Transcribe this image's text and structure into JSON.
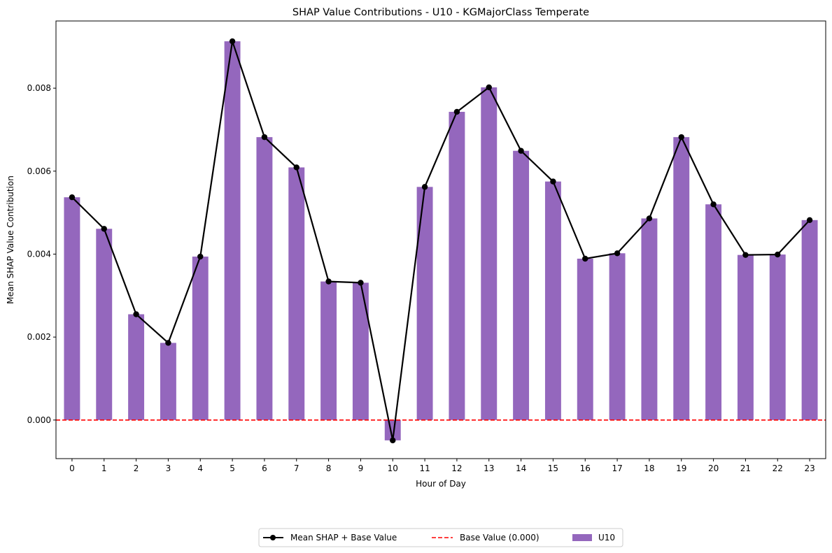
{
  "chart_data": {
    "type": "bar",
    "title": "SHAP Value Contributions - U10 - KGMajorClass Temperate",
    "xlabel": "Hour of Day",
    "ylabel": "Mean SHAP Value Contribution",
    "categories": [
      "0",
      "1",
      "2",
      "3",
      "4",
      "5",
      "6",
      "7",
      "8",
      "9",
      "10",
      "11",
      "12",
      "13",
      "14",
      "15",
      "16",
      "17",
      "18",
      "19",
      "20",
      "21",
      "22",
      "23"
    ],
    "ylim": [
      -0.00093,
      0.00962
    ],
    "yticks": [
      0.0,
      0.002,
      0.004,
      0.006,
      0.008
    ],
    "ytick_labels": [
      "0.000",
      "0.002",
      "0.004",
      "0.006",
      "0.008"
    ],
    "series": [
      {
        "name": "U10",
        "kind": "bar",
        "color": "#9467bd",
        "values": [
          0.00537,
          0.00461,
          0.00255,
          0.00186,
          0.00394,
          0.00913,
          0.00682,
          0.00609,
          0.00334,
          0.00331,
          -0.00049,
          0.00562,
          0.00743,
          0.00802,
          0.00649,
          0.00575,
          0.00389,
          0.00402,
          0.00486,
          0.00682,
          0.0052,
          0.00398,
          0.00399,
          0.00482
        ]
      },
      {
        "name": "Mean SHAP + Base Value",
        "kind": "line",
        "color": "#000000",
        "values": [
          0.00537,
          0.00461,
          0.00255,
          0.00186,
          0.00394,
          0.00913,
          0.00682,
          0.00609,
          0.00334,
          0.00331,
          -0.00049,
          0.00562,
          0.00743,
          0.00802,
          0.00649,
          0.00575,
          0.00389,
          0.00402,
          0.00486,
          0.00682,
          0.0052,
          0.00398,
          0.00399,
          0.00482
        ]
      },
      {
        "name": "Base Value (0.000)",
        "kind": "hline",
        "color": "#ff0000",
        "value": 0.0
      }
    ],
    "legend": {
      "placement": "bottom-center",
      "entries": [
        "Mean SHAP + Base Value",
        "Base Value (0.000)",
        "U10"
      ]
    },
    "grid": false
  }
}
